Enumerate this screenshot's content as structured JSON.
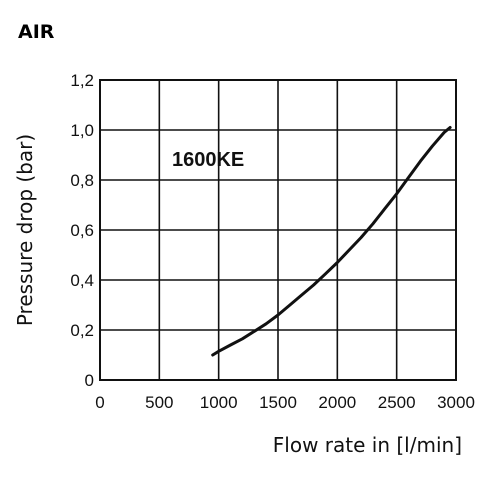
{
  "chart_data": {
    "type": "line",
    "title": "AIR",
    "xlabel": "Flow rate in [l/min]",
    "ylabel": "Pressure drop (bar)",
    "xlim": [
      0,
      3000
    ],
    "ylim": [
      0,
      1.2
    ],
    "x_ticks": [
      "0",
      "500",
      "1000",
      "1500",
      "2000",
      "2500",
      "3000"
    ],
    "y_ticks": [
      "0",
      "0,2",
      "0,4",
      "0,6",
      "0,8",
      "1,0",
      "1,2"
    ],
    "grid": true,
    "series": [
      {
        "name": "1600KE",
        "x": [
          950,
          1000,
          1100,
          1200,
          1300,
          1400,
          1500,
          1600,
          1700,
          1800,
          1900,
          2000,
          2100,
          2200,
          2300,
          2400,
          2500,
          2600,
          2700,
          2800,
          2900,
          2950
        ],
        "y": [
          0.1,
          0.115,
          0.14,
          0.165,
          0.195,
          0.225,
          0.26,
          0.3,
          0.34,
          0.38,
          0.425,
          0.47,
          0.52,
          0.57,
          0.625,
          0.685,
          0.745,
          0.81,
          0.875,
          0.935,
          0.99,
          1.01
        ]
      }
    ]
  }
}
